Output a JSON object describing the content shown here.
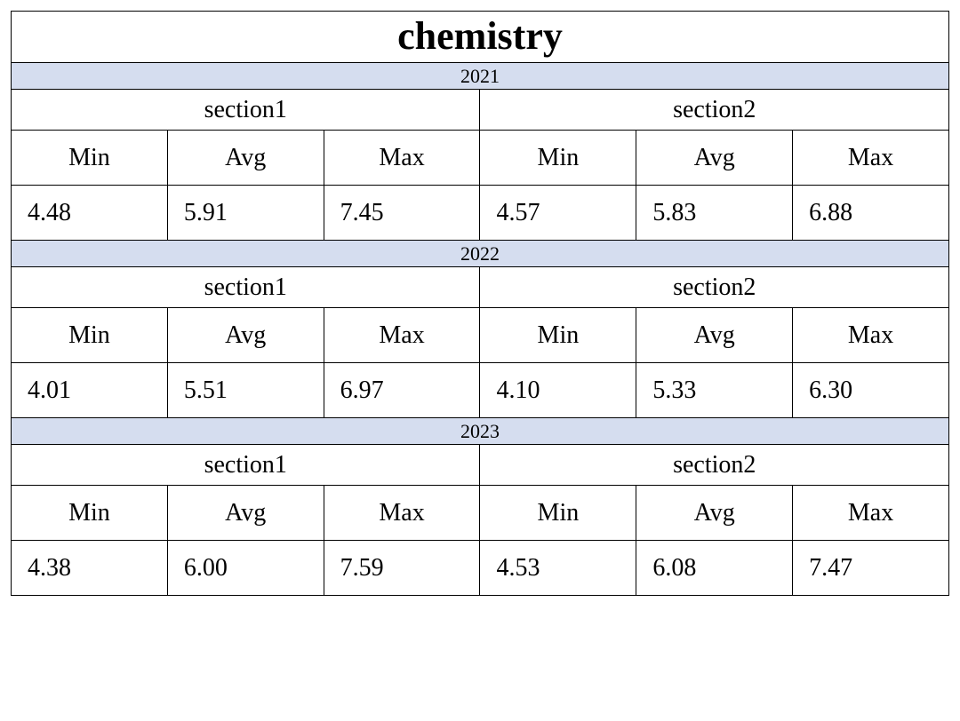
{
  "table": {
    "type": "table",
    "title": "chemistry",
    "background_color": "#ffffff",
    "border_color": "#000000",
    "year_row_bg": "#d5ddef",
    "text_color": "#000000",
    "title_fontsize": 44,
    "title_fontweight": "bold",
    "year_fontsize": 22,
    "section_fontsize": 28,
    "stat_fontsize": 28,
    "value_fontsize": 28,
    "font_family": "Times New Roman",
    "stat_labels": [
      "Min",
      "Avg",
      "Max"
    ],
    "section_labels": [
      "section1",
      "section2"
    ],
    "years": [
      {
        "year": "2021",
        "sections": [
          {
            "values": [
              "4.48",
              "5.91",
              "7.45"
            ]
          },
          {
            "values": [
              "4.57",
              "5.83",
              "6.88"
            ]
          }
        ]
      },
      {
        "year": "2022",
        "sections": [
          {
            "values": [
              "4.01",
              "5.51",
              "6.97"
            ]
          },
          {
            "values": [
              "4.10",
              "5.33",
              "6.30"
            ]
          }
        ]
      },
      {
        "year": "2023",
        "sections": [
          {
            "values": [
              "4.38",
              "6.00",
              "7.59"
            ]
          },
          {
            "values": [
              "4.53",
              "6.08",
              "7.47"
            ]
          }
        ]
      }
    ]
  }
}
